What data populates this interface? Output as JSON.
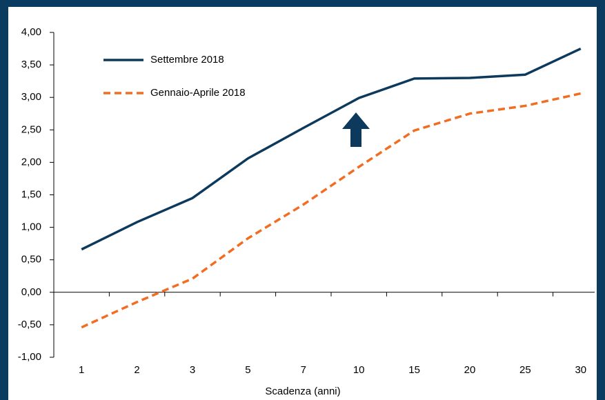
{
  "chart_data": {
    "type": "line",
    "xlabel": "Scadenza (anni)",
    "categories": [
      "1",
      "2",
      "3",
      "5",
      "7",
      "10",
      "15",
      "20",
      "25",
      "30"
    ],
    "series": [
      {
        "name": "Settembre 2018",
        "color": "#0d3a5c",
        "dash": "solid",
        "values": [
          0.66,
          1.08,
          1.45,
          2.06,
          2.53,
          2.99,
          3.29,
          3.3,
          3.35,
          3.75
        ]
      },
      {
        "name": "Gennaio-Aprile 2018",
        "color": "#f26d21",
        "dash": "dashed",
        "values": [
          -0.54,
          -0.15,
          0.21,
          0.83,
          1.35,
          1.93,
          2.49,
          2.75,
          2.87,
          3.06
        ]
      }
    ],
    "ylim": [
      -1,
      4
    ],
    "yticks": [
      {
        "value": -1,
        "label": "-1,00"
      },
      {
        "value": -0.5,
        "label": "-0,50"
      },
      {
        "value": 0,
        "label": "0,00"
      },
      {
        "value": 0.5,
        "label": "0,50"
      },
      {
        "value": 1,
        "label": "1,00"
      },
      {
        "value": 1.5,
        "label": "1,50"
      },
      {
        "value": 2,
        "label": "2,00"
      },
      {
        "value": 2.5,
        "label": "2,50"
      },
      {
        "value": 3,
        "label": "3,00"
      },
      {
        "value": 3.5,
        "label": "3,50"
      },
      {
        "value": 4,
        "label": "4,00"
      }
    ],
    "legend": "upper left"
  }
}
